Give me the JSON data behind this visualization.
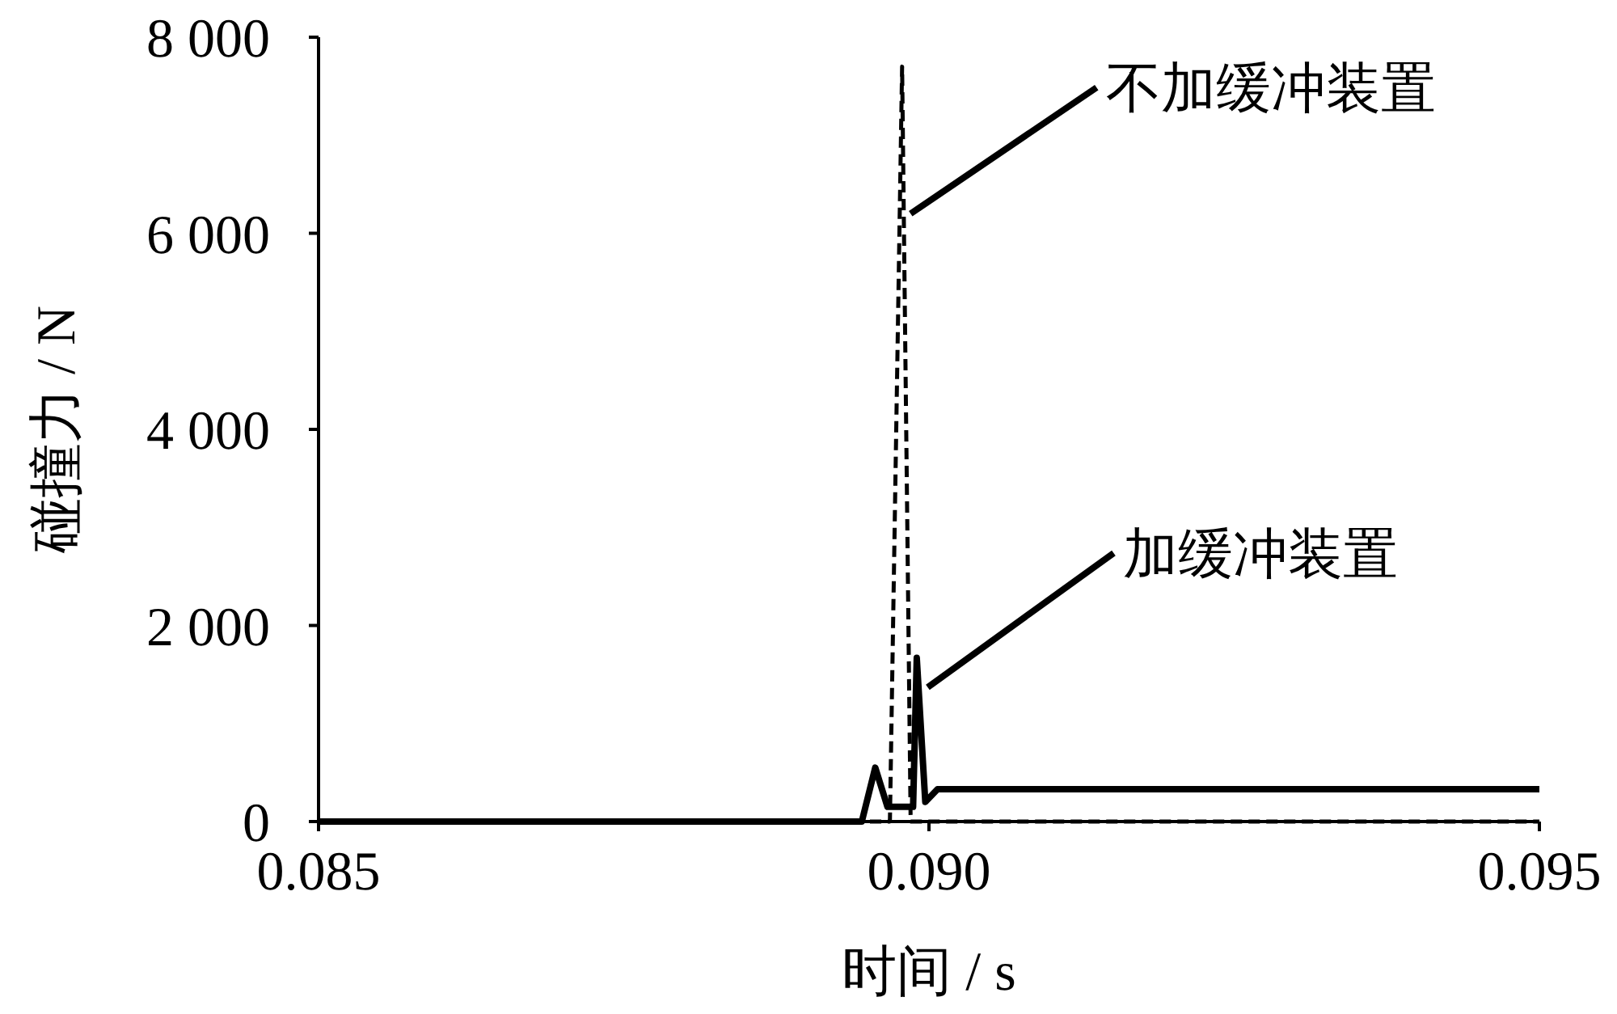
{
  "chart_data": {
    "type": "line",
    "xlabel": "时间 / s",
    "ylabel": "碰撞力 / N",
    "xlim": [
      0.085,
      0.095
    ],
    "ylim": [
      0,
      8000
    ],
    "xticks": [
      {
        "value": 0.085,
        "label": "0.085"
      },
      {
        "value": 0.09,
        "label": "0.090"
      },
      {
        "value": 0.095,
        "label": "0.095"
      }
    ],
    "yticks": [
      {
        "value": 0,
        "label": "0"
      },
      {
        "value": 2000,
        "label": "2 000"
      },
      {
        "value": 4000,
        "label": "4 000"
      },
      {
        "value": 6000,
        "label": "6 000"
      },
      {
        "value": 8000,
        "label": "8 000"
      }
    ],
    "grid": false,
    "marker": "none",
    "series": [
      {
        "color": "#000000",
        "line_style": "dashed",
        "x": [
          0.085,
          0.08968,
          0.08978,
          0.08985,
          0.095
        ],
        "values": [
          0,
          0,
          7700,
          0,
          0
        ]
      },
      {
        "color": "#000000",
        "line_style": "solid",
        "x": [
          0.085,
          0.08945,
          0.08956,
          0.08966,
          0.08987,
          0.0899,
          0.08997,
          0.09007,
          0.095
        ],
        "values": [
          0,
          0,
          550,
          150,
          150,
          1670,
          200,
          330,
          330
        ]
      }
    ],
    "annotations": [
      {
        "text": "不加缓冲装置",
        "x": 0.08981,
        "y": 6200
      },
      {
        "text": "加缓冲装置",
        "x": 0.08995,
        "y": 1370
      }
    ]
  }
}
